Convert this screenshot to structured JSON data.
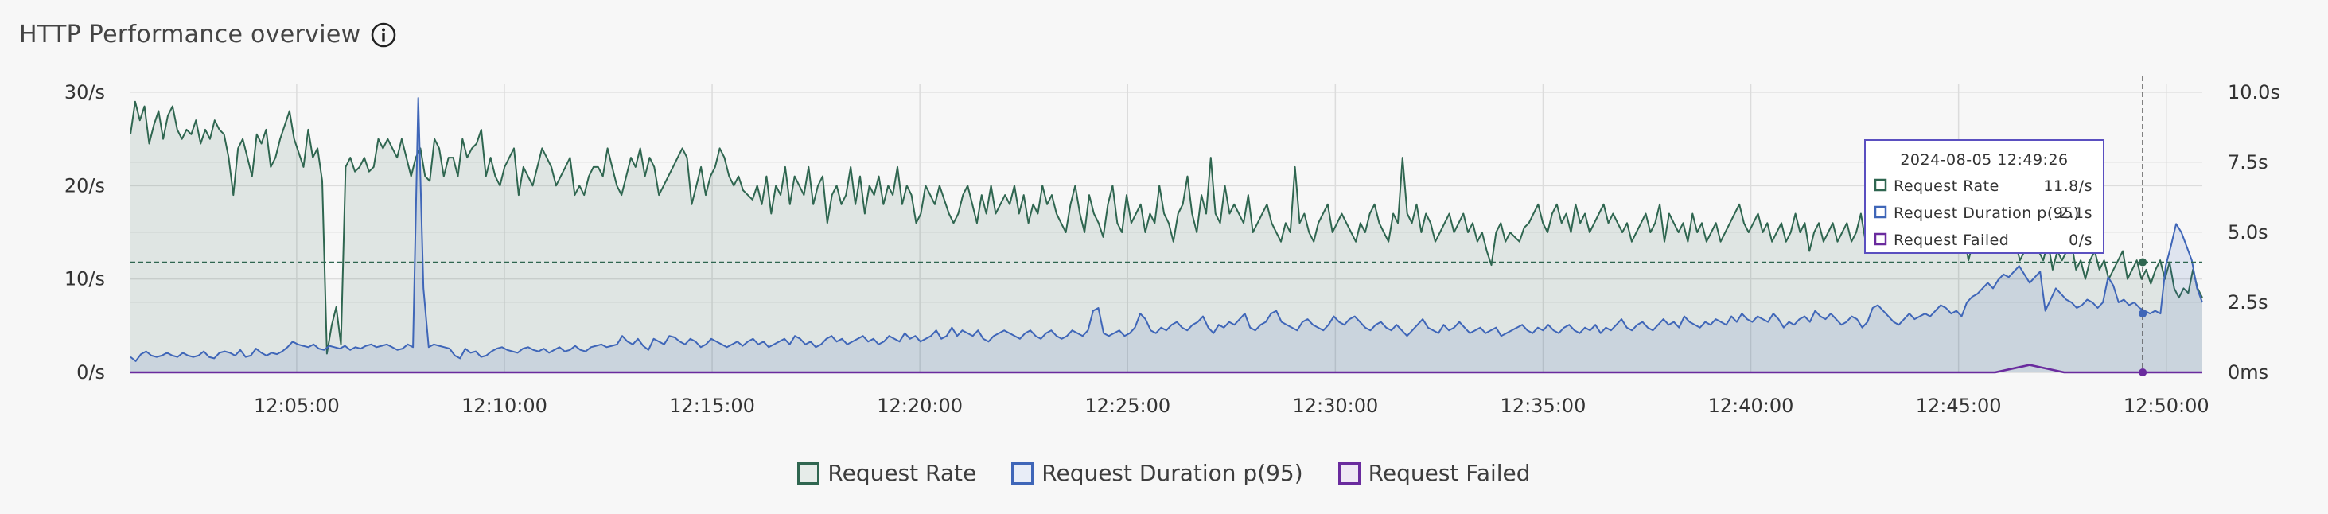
{
  "header": {
    "title": "HTTP Performance overview",
    "info_icon": "info-icon"
  },
  "colors": {
    "rate": "#2f6650",
    "duration": "#3f66b8",
    "failed": "#6a2b9e",
    "grid": "#dcdcdc"
  },
  "chart_data": {
    "type": "line",
    "title": "HTTP Performance overview",
    "x_start": "12:01:00",
    "x_end": "12:50:52",
    "x_ticks": [
      "12:05:00",
      "12:10:00",
      "12:15:00",
      "12:20:00",
      "12:25:00",
      "12:30:00",
      "12:35:00",
      "12:40:00",
      "12:45:00",
      "12:50:00"
    ],
    "y_left": {
      "ticks": [
        "0/s",
        "10/s",
        "20/s",
        "30/s"
      ],
      "ylim": [
        0,
        30
      ]
    },
    "y_right": {
      "ticks": [
        "0ms",
        "2.5s",
        "5.0s",
        "7.5s",
        "10.0s"
      ],
      "ylim": [
        0,
        10
      ]
    },
    "grid": true,
    "legend_position": "bottom-center",
    "series": [
      {
        "name": "Request Rate",
        "axis": "left",
        "unit": "/s",
        "style": "area",
        "values": [
          25.5,
          29,
          27,
          28.5,
          24.5,
          26.5,
          28,
          25,
          27.5,
          28.5,
          26,
          25,
          26,
          25.5,
          27,
          24.5,
          26,
          25,
          27,
          26,
          25.5,
          23,
          19,
          24,
          25,
          23,
          21,
          25.5,
          24.5,
          26,
          22,
          23,
          25,
          26.5,
          28,
          25,
          23.5,
          22,
          26,
          23,
          24,
          20.5,
          2,
          5,
          7,
          3,
          22,
          23,
          21.5,
          22,
          23,
          21.5,
          22,
          25,
          24,
          25,
          24,
          23,
          25,
          23,
          21,
          23,
          24,
          21,
          20.5,
          25,
          24,
          21,
          23,
          23,
          21,
          25,
          23,
          24,
          24.5,
          26,
          21,
          23,
          21,
          20,
          22,
          23,
          24,
          19,
          22,
          21,
          20,
          22,
          24,
          23,
          22,
          20,
          21,
          22,
          23,
          19,
          20,
          19,
          21,
          22,
          22,
          21,
          24,
          22,
          20,
          19,
          21,
          23,
          22,
          24,
          21,
          23,
          22,
          19,
          20,
          21,
          22,
          23,
          24,
          23,
          18,
          20,
          22,
          19,
          21,
          22,
          24,
          23,
          21,
          20,
          21,
          19.5,
          19,
          18.5,
          20,
          18,
          21,
          17,
          20,
          19,
          22,
          18,
          21,
          20,
          19,
          22,
          18,
          20,
          21,
          16,
          19,
          20,
          18,
          19,
          22,
          18,
          21,
          17,
          20,
          19,
          21,
          18,
          20,
          19,
          22,
          18,
          20,
          19,
          16,
          17,
          20,
          19,
          18,
          20,
          18.5,
          17,
          16,
          17,
          19,
          20,
          18,
          16,
          19,
          17,
          20,
          17,
          18,
          19,
          18,
          20,
          17,
          19,
          16,
          18,
          17,
          20,
          18,
          19,
          17,
          16,
          15,
          18,
          20,
          17,
          15,
          19,
          17,
          16,
          14.5,
          18,
          20,
          16,
          15,
          19,
          16,
          17,
          18,
          15,
          17,
          16,
          20,
          17,
          16,
          14,
          17,
          18,
          21,
          17,
          15,
          19,
          17,
          23,
          17,
          16,
          20,
          17,
          18,
          17,
          16,
          19,
          15,
          16,
          17,
          18,
          16,
          15,
          14,
          16,
          15,
          22,
          16,
          17,
          15,
          14,
          16,
          17,
          18,
          15,
          16,
          17,
          16,
          15,
          14,
          16,
          15,
          17,
          18,
          16,
          15,
          14,
          17,
          16,
          23,
          17,
          16,
          18,
          15,
          17,
          16,
          14,
          15,
          16,
          17,
          15,
          16,
          17,
          15,
          16,
          14,
          15,
          13,
          11.5,
          15,
          16,
          14,
          15,
          14.5,
          14,
          15.5,
          16,
          17,
          18,
          16,
          15,
          17,
          18,
          16,
          17,
          15,
          18,
          16,
          17,
          15,
          16,
          17,
          18,
          16,
          17,
          16,
          15,
          16,
          14,
          15,
          16,
          17,
          15,
          16,
          18,
          14,
          17,
          16,
          15,
          16,
          14,
          17,
          15,
          16,
          14,
          15,
          16,
          14,
          15,
          16,
          17,
          18,
          16,
          15,
          16,
          17,
          15,
          16,
          14,
          15,
          16,
          14,
          15,
          17,
          15,
          16,
          13,
          15,
          16,
          14,
          15,
          16,
          14,
          15,
          16,
          14,
          15,
          17,
          14,
          15,
          16,
          17,
          14,
          13,
          16,
          15,
          14,
          13,
          15,
          16,
          17,
          13,
          14,
          15,
          16,
          14,
          15,
          13,
          14,
          15,
          12,
          14,
          13,
          15,
          14,
          15,
          16,
          14,
          13,
          15,
          14,
          12,
          13,
          14,
          15,
          13,
          12,
          14,
          11,
          13,
          12,
          13,
          14,
          11,
          12,
          10,
          12,
          13,
          11,
          12,
          10,
          11,
          12,
          13,
          10,
          11,
          12,
          10,
          11,
          9.5,
          11,
          12,
          10,
          11.8,
          9,
          8,
          9,
          8.5,
          11,
          9,
          8
        ]
      },
      {
        "name": "Request Duration p(95)",
        "axis": "right",
        "unit": "s",
        "style": "area",
        "values": [
          0.55,
          0.4,
          0.65,
          0.75,
          0.6,
          0.55,
          0.6,
          0.7,
          0.6,
          0.55,
          0.7,
          0.6,
          0.55,
          0.6,
          0.75,
          0.55,
          0.5,
          0.7,
          0.75,
          0.7,
          0.6,
          0.8,
          0.55,
          0.6,
          0.85,
          0.7,
          0.6,
          0.7,
          0.65,
          0.75,
          0.9,
          1.1,
          1.0,
          0.95,
          0.9,
          1.0,
          0.85,
          0.8,
          0.95,
          0.9,
          0.85,
          0.95,
          0.8,
          0.9,
          0.85,
          0.95,
          1.0,
          0.9,
          0.95,
          1.0,
          0.9,
          0.8,
          0.85,
          1.0,
          0.9,
          9.8,
          3,
          0.9,
          1.0,
          0.95,
          0.9,
          0.85,
          0.6,
          0.5,
          0.85,
          0.7,
          0.75,
          0.55,
          0.6,
          0.75,
          0.85,
          0.9,
          0.8,
          0.75,
          0.7,
          0.85,
          0.9,
          0.8,
          0.75,
          0.85,
          0.7,
          0.8,
          0.9,
          0.75,
          0.8,
          0.95,
          0.8,
          0.75,
          0.9,
          0.95,
          1.0,
          0.9,
          0.95,
          1.0,
          1.3,
          1.1,
          1.0,
          1.2,
          0.95,
          0.8,
          1.2,
          1.1,
          1.0,
          1.3,
          1.25,
          1.1,
          1.0,
          1.2,
          1.1,
          0.9,
          1.0,
          1.2,
          1.1,
          1.0,
          0.9,
          1.0,
          1.1,
          0.95,
          1.1,
          1.2,
          1.0,
          1.1,
          0.9,
          1.0,
          1.1,
          1.2,
          1.0,
          1.3,
          1.2,
          1.0,
          1.1,
          0.9,
          1.0,
          1.2,
          1.3,
          1.1,
          1.2,
          1.0,
          1.1,
          1.2,
          1.3,
          1.1,
          1.2,
          1.0,
          1.1,
          1.3,
          1.2,
          1.1,
          1.4,
          1.2,
          1.3,
          1.1,
          1.2,
          1.3,
          1.5,
          1.2,
          1.3,
          1.6,
          1.3,
          1.5,
          1.4,
          1.3,
          1.5,
          1.2,
          1.1,
          1.3,
          1.4,
          1.5,
          1.4,
          1.3,
          1.2,
          1.4,
          1.5,
          1.3,
          1.2,
          1.4,
          1.5,
          1.3,
          1.2,
          1.3,
          1.5,
          1.4,
          1.3,
          1.5,
          2.2,
          2.3,
          1.4,
          1.3,
          1.4,
          1.5,
          1.3,
          1.4,
          1.6,
          2.1,
          1.9,
          1.5,
          1.4,
          1.6,
          1.5,
          1.7,
          1.8,
          1.6,
          1.5,
          1.7,
          1.8,
          2.0,
          1.6,
          1.4,
          1.7,
          1.6,
          1.8,
          1.7,
          1.9,
          2.1,
          1.6,
          1.5,
          1.7,
          1.8,
          2.1,
          2.2,
          1.8,
          1.7,
          1.6,
          1.5,
          1.8,
          1.9,
          1.7,
          1.6,
          1.5,
          1.7,
          2.0,
          1.8,
          1.7,
          1.9,
          2.0,
          1.8,
          1.6,
          1.5,
          1.7,
          1.8,
          1.6,
          1.5,
          1.7,
          1.5,
          1.3,
          1.5,
          1.7,
          1.9,
          1.6,
          1.5,
          1.4,
          1.7,
          1.5,
          1.6,
          1.8,
          1.6,
          1.4,
          1.5,
          1.6,
          1.4,
          1.5,
          1.6,
          1.3,
          1.4,
          1.5,
          1.6,
          1.7,
          1.5,
          1.4,
          1.6,
          1.5,
          1.7,
          1.5,
          1.4,
          1.6,
          1.7,
          1.5,
          1.4,
          1.6,
          1.5,
          1.7,
          1.4,
          1.6,
          1.5,
          1.7,
          1.9,
          1.6,
          1.5,
          1.7,
          1.8,
          1.6,
          1.5,
          1.7,
          1.9,
          1.7,
          1.8,
          1.6,
          2.0,
          1.8,
          1.7,
          1.6,
          1.8,
          1.7,
          1.9,
          1.8,
          1.7,
          2.0,
          1.8,
          2.1,
          1.9,
          1.8,
          2.0,
          1.9,
          1.8,
          2.1,
          1.9,
          1.6,
          1.8,
          1.7,
          1.9,
          2.0,
          1.8,
          2.2,
          2.0,
          1.9,
          2.1,
          1.9,
          1.7,
          1.8,
          2.0,
          1.9,
          1.6,
          1.8,
          2.3,
          2.4,
          2.2,
          2.0,
          1.8,
          1.7,
          1.9,
          2.1,
          1.9,
          2.0,
          2.1,
          2.0,
          2.2,
          2.4,
          2.3,
          2.1,
          2.2,
          2.0,
          2.5,
          2.7,
          2.8,
          3.0,
          3.2,
          3.0,
          3.3,
          3.5,
          3.4,
          3.6,
          3.8,
          3.5,
          3.2,
          3.4,
          3.6,
          2.2,
          2.6,
          3.0,
          2.8,
          2.6,
          2.5,
          2.3,
          2.4,
          2.6,
          2.5,
          2.3,
          2.5,
          3.4,
          3.1,
          2.5,
          2.6,
          2.4,
          2.5,
          2.3,
          2.2,
          2.1,
          2.2,
          2.1,
          3.8,
          4.5,
          5.3,
          5.0,
          4.5,
          4.0,
          3.0,
          2.5
        ]
      },
      {
        "name": "Request Failed",
        "axis": "left",
        "unit": "/s",
        "style": "line",
        "values": [
          0,
          0,
          0,
          0,
          0,
          0,
          0,
          0,
          0,
          0,
          0,
          0,
          0,
          0,
          0,
          0,
          0,
          0,
          0,
          0,
          0,
          0,
          0,
          0,
          0,
          0,
          0,
          0,
          0,
          0,
          0,
          0,
          0,
          0,
          0,
          0,
          0,
          0,
          0,
          0,
          0,
          0,
          0,
          0,
          0,
          0,
          0,
          0,
          0,
          0,
          0,
          0,
          0,
          0,
          0,
          0.8,
          0,
          0,
          0,
          0,
          0
        ]
      }
    ],
    "tooltip": {
      "time": "2024-08-05 12:49:26",
      "rows": [
        {
          "label": "Request Rate",
          "value": "11.8/s"
        },
        {
          "label": "Request Duration p(95)",
          "value": "2.1s"
        },
        {
          "label": "Request Failed",
          "value": "0/s"
        }
      ]
    }
  },
  "legend": {
    "items": [
      {
        "label": "Request Rate"
      },
      {
        "label": "Request Duration p(95)"
      },
      {
        "label": "Request Failed"
      }
    ]
  }
}
